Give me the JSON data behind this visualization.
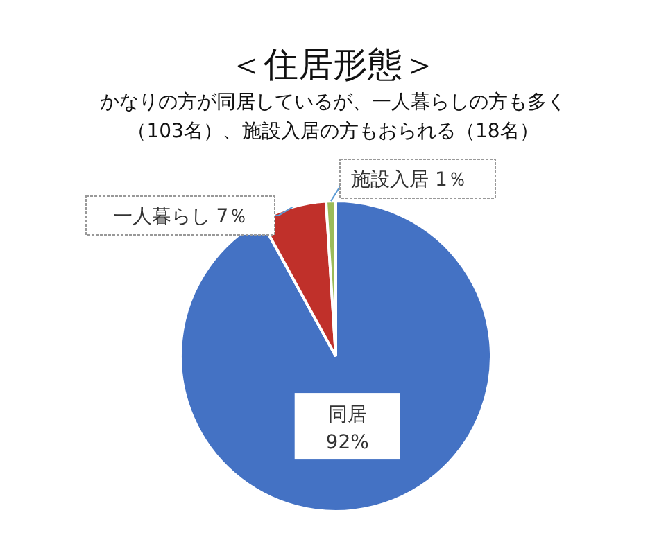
{
  "chart_data": {
    "type": "pie",
    "title": "＜住居形態＞",
    "subtitle": "かなりの方が同居しているが、一人暮らしの方も多く（103名）、施設入居の方もおられる（18名）",
    "categories": [
      "同居",
      "一人暮らし",
      "施設入居"
    ],
    "values": [
      92,
      7,
      1
    ],
    "colors": [
      "#4472c4",
      "#c0302a",
      "#9bbb59"
    ],
    "value_labels": [
      "92%",
      "7％",
      "1％"
    ],
    "legend": false
  }
}
